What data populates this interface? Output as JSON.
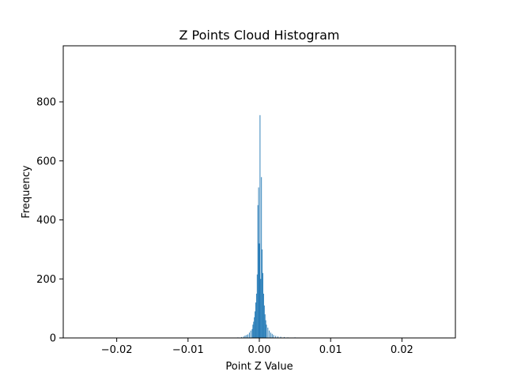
{
  "chart_data": {
    "type": "bar",
    "title": "Z Points Cloud Histogram",
    "xlabel": "Point Z Value",
    "ylabel": "Frequency",
    "xlim": [
      -0.0275,
      0.0275
    ],
    "ylim": [
      0,
      990
    ],
    "xticks": [
      -0.02,
      -0.01,
      0.0,
      0.01,
      0.02
    ],
    "xtick_labels": [
      "−0.02",
      "−0.01",
      "0.00",
      "0.01",
      "0.02"
    ],
    "yticks": [
      0,
      200,
      400,
      600,
      800
    ],
    "ytick_labels": [
      "0",
      "200",
      "400",
      "600",
      "800"
    ],
    "grid": false,
    "bar_color": "#1f77b4",
    "bin_width": 0.0001,
    "bins": [
      {
        "x": -0.003,
        "count": 2
      },
      {
        "x": -0.0025,
        "count": 3
      },
      {
        "x": -0.0022,
        "count": 5
      },
      {
        "x": -0.002,
        "count": 8
      },
      {
        "x": -0.0018,
        "count": 10
      },
      {
        "x": -0.0016,
        "count": 12
      },
      {
        "x": -0.0014,
        "count": 18
      },
      {
        "x": -0.0012,
        "count": 25
      },
      {
        "x": -0.001,
        "count": 30
      },
      {
        "x": -0.0009,
        "count": 45
      },
      {
        "x": -0.0008,
        "count": 55
      },
      {
        "x": -0.0007,
        "count": 70
      },
      {
        "x": -0.0006,
        "count": 90
      },
      {
        "x": -0.0005,
        "count": 120
      },
      {
        "x": -0.0004,
        "count": 150
      },
      {
        "x": -0.0003,
        "count": 215
      },
      {
        "x": -0.0002,
        "count": 450
      },
      {
        "x": -0.0001,
        "count": 510
      },
      {
        "x": 0.0,
        "count": 320
      },
      {
        "x": 0.0001,
        "count": 755
      },
      {
        "x": 0.0002,
        "count": 200
      },
      {
        "x": 0.0003,
        "count": 545
      },
      {
        "x": 0.0004,
        "count": 300
      },
      {
        "x": 0.0005,
        "count": 220
      },
      {
        "x": 0.0006,
        "count": 150
      },
      {
        "x": 0.0007,
        "count": 110
      },
      {
        "x": 0.0008,
        "count": 80
      },
      {
        "x": 0.0009,
        "count": 60
      },
      {
        "x": 0.001,
        "count": 45
      },
      {
        "x": 0.0012,
        "count": 35
      },
      {
        "x": 0.0014,
        "count": 25
      },
      {
        "x": 0.0016,
        "count": 18
      },
      {
        "x": 0.0018,
        "count": 14
      },
      {
        "x": 0.002,
        "count": 10
      },
      {
        "x": 0.0023,
        "count": 7
      },
      {
        "x": 0.0026,
        "count": 5
      },
      {
        "x": 0.003,
        "count": 4
      },
      {
        "x": 0.0035,
        "count": 3
      },
      {
        "x": 0.004,
        "count": 2
      },
      {
        "x": 0.005,
        "count": 2
      },
      {
        "x": 0.006,
        "count": 1
      }
    ]
  }
}
